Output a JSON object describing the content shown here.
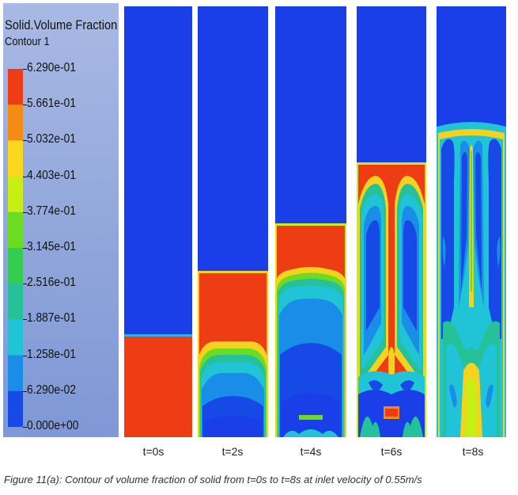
{
  "legend": {
    "title": "Solid.Volume Fraction",
    "subtitle": "Contour 1",
    "ticks": [
      "6.290e-01",
      "5.661e-01",
      "5.032e-01",
      "4.403e-01",
      "3.774e-01",
      "3.145e-01",
      "2.516e-01",
      "1.887e-01",
      "1.258e-01",
      "6.290e-02",
      "0.000e+00"
    ],
    "colors": [
      "#ee3c14",
      "#f28c12",
      "#fbd81e",
      "#c9ee16",
      "#6bdc22",
      "#34cd52",
      "#25c29a",
      "#20c4d6",
      "#1a8de8",
      "#1649e6"
    ]
  },
  "panels": [
    {
      "label": "t=0s"
    },
    {
      "label": "t=2s"
    },
    {
      "label": "t=4s"
    },
    {
      "label": "t=6s"
    },
    {
      "label": "t=8s"
    }
  ],
  "caption": "Figure 11(a): Contour of volume fraction of solid from t=0s to t=8s at inlet velocity of 0.55m/s"
}
